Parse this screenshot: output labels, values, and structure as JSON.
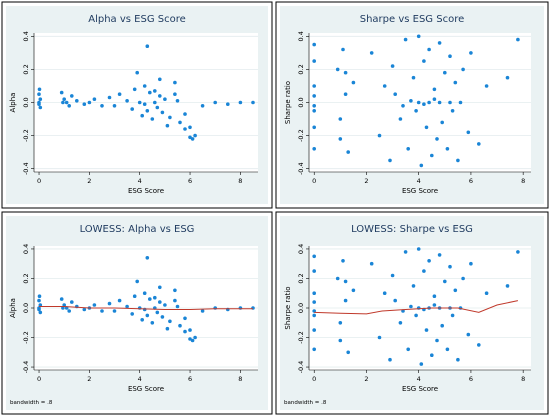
{
  "chart_data": [
    {
      "type": "scatter",
      "title": "Alpha vs ESG Score",
      "xlabel": "ESG Score",
      "ylabel": "Alpha",
      "xlim": [
        -0.2,
        8.7
      ],
      "ylim": [
        -0.42,
        0.42
      ],
      "xticks": [
        "0",
        "2",
        "4",
        "6",
        "8"
      ],
      "yticks": [
        "-0.4",
        "-0.2",
        "0.0",
        "0.2",
        "0.4"
      ],
      "x_tick_values": [
        0,
        2,
        4,
        6,
        8
      ],
      "y_tick_values": [
        -0.4,
        -0.2,
        0.0,
        0.2,
        0.4
      ],
      "point_color": "#1a85d6",
      "grid": true,
      "note": "",
      "series": [
        {
          "x": [
            0.0,
            0.0,
            0.0,
            0.05,
            0.05,
            0.9,
            1.0,
            1.1,
            1.3,
            1.5,
            1.8,
            2.0,
            2.2,
            2.5,
            2.8,
            3.0,
            3.2,
            3.5,
            3.7,
            3.8,
            4.0,
            4.1,
            4.2,
            4.3,
            4.4,
            4.5,
            4.6,
            4.7,
            4.8,
            4.9,
            5.0,
            5.2,
            5.4,
            5.6,
            5.8,
            6.0,
            6.2,
            6.5,
            7.0,
            7.5,
            8.0,
            8.5,
            4.3,
            3.9,
            4.8,
            5.1,
            5.4,
            5.8,
            6.0,
            6.1,
            4.6,
            4.2,
            5.5,
            0.02,
            1.2,
            0.95
          ],
          "y": [
            0.05,
            0.0,
            -0.01,
            0.02,
            -0.03,
            0.06,
            0.02,
            0.0,
            0.04,
            0.01,
            -0.01,
            0.0,
            0.02,
            -0.02,
            0.03,
            -0.02,
            0.05,
            0.01,
            -0.04,
            0.08,
            0.0,
            -0.08,
            0.1,
            -0.05,
            0.06,
            -0.1,
            0.07,
            -0.03,
            0.04,
            -0.06,
            0.02,
            -0.09,
            0.05,
            -0.12,
            -0.07,
            -0.15,
            -0.2,
            -0.02,
            0.0,
            -0.01,
            0.0,
            0.0,
            0.34,
            0.18,
            0.14,
            -0.14,
            0.12,
            -0.16,
            -0.21,
            -0.22,
            0.0,
            -0.01,
            0.01,
            0.08,
            -0.02,
            0.0
          ]
        }
      ]
    },
    {
      "type": "scatter",
      "title": "Sharpe vs ESG Score",
      "xlabel": "ESG Score",
      "ylabel": "Sharpe ratio",
      "xlim": [
        -0.2,
        8.3
      ],
      "ylim": [
        -0.42,
        0.42
      ],
      "xticks": [
        "0",
        "2",
        "4",
        "6",
        "8"
      ],
      "yticks": [
        "-0.4",
        "-0.2",
        "0.0",
        "0.2",
        "0.4"
      ],
      "x_tick_values": [
        0,
        2,
        4,
        6,
        8
      ],
      "y_tick_values": [
        -0.4,
        -0.2,
        0.0,
        0.2,
        0.4
      ],
      "point_color": "#1a85d6",
      "grid": true,
      "note": "",
      "series": [
        {
          "x": [
            0.0,
            0.0,
            0.0,
            0.0,
            0.0,
            0.0,
            0.0,
            0.0,
            0.9,
            1.0,
            1.1,
            1.2,
            1.3,
            1.5,
            1.0,
            1.2,
            2.2,
            2.5,
            2.7,
            2.9,
            3.0,
            3.1,
            3.3,
            3.5,
            3.6,
            3.8,
            3.9,
            4.0,
            4.1,
            4.2,
            4.3,
            4.4,
            4.5,
            4.6,
            4.7,
            4.8,
            4.9,
            5.0,
            5.1,
            5.2,
            5.3,
            5.4,
            5.5,
            5.7,
            5.9,
            6.0,
            6.3,
            6.6,
            7.4,
            7.8,
            4.0,
            4.4,
            4.8,
            3.7,
            5.2,
            4.2,
            4.6,
            3.4,
            5.6
          ],
          "y": [
            0.35,
            0.25,
            0.1,
            -0.05,
            -0.15,
            -0.28,
            0.04,
            -0.02,
            0.2,
            -0.1,
            0.32,
            0.05,
            -0.3,
            0.12,
            -0.22,
            0.18,
            0.3,
            -0.2,
            0.1,
            -0.35,
            0.22,
            0.05,
            -0.1,
            0.38,
            -0.28,
            0.15,
            -0.05,
            0.4,
            -0.38,
            0.25,
            -0.15,
            0.32,
            -0.32,
            0.08,
            -0.22,
            0.36,
            -0.12,
            0.18,
            -0.28,
            0.28,
            -0.05,
            0.12,
            -0.35,
            0.2,
            -0.18,
            0.3,
            -0.25,
            0.1,
            0.15,
            0.38,
            0.0,
            0.0,
            0.0,
            0.01,
            0.0,
            -0.01,
            0.02,
            -0.02,
            0.0
          ]
        }
      ]
    },
    {
      "type": "scatter",
      "title": "LOWESS: Alpha vs ESG",
      "xlabel": "ESG Score",
      "ylabel": "Alpha",
      "xlim": [
        -0.2,
        8.7
      ],
      "ylim": [
        -0.42,
        0.42
      ],
      "xticks": [
        "0",
        "2",
        "4",
        "6",
        "8"
      ],
      "yticks": [
        "-0.4",
        "-0.2",
        "0.0",
        "0.2",
        "0.4"
      ],
      "x_tick_values": [
        0,
        2,
        4,
        6,
        8
      ],
      "y_tick_values": [
        -0.4,
        -0.2,
        0.0,
        0.2,
        0.4
      ],
      "point_color": "#1a85d6",
      "line_color": "#c0392b",
      "grid": true,
      "note": "bandwidth = .8",
      "series": [
        {
          "x": [
            0.0,
            0.0,
            0.0,
            0.05,
            0.05,
            0.9,
            1.0,
            1.1,
            1.3,
            1.5,
            1.8,
            2.0,
            2.2,
            2.5,
            2.8,
            3.0,
            3.2,
            3.5,
            3.7,
            3.8,
            4.0,
            4.1,
            4.2,
            4.3,
            4.4,
            4.5,
            4.6,
            4.7,
            4.8,
            4.9,
            5.0,
            5.2,
            5.4,
            5.6,
            5.8,
            6.0,
            6.2,
            6.5,
            7.0,
            7.5,
            8.0,
            8.5,
            4.3,
            3.9,
            4.8,
            5.1,
            5.4,
            5.8,
            6.0,
            6.1,
            4.6,
            4.2,
            5.5,
            0.02,
            1.2,
            0.95
          ],
          "y": [
            0.05,
            0.0,
            -0.01,
            0.02,
            -0.03,
            0.06,
            0.02,
            0.0,
            0.04,
            0.01,
            -0.01,
            0.0,
            0.02,
            -0.02,
            0.03,
            -0.02,
            0.05,
            0.01,
            -0.04,
            0.08,
            0.0,
            -0.08,
            0.1,
            -0.05,
            0.06,
            -0.1,
            0.07,
            -0.03,
            0.04,
            -0.06,
            0.02,
            -0.09,
            0.05,
            -0.12,
            -0.07,
            -0.15,
            -0.2,
            -0.02,
            0.0,
            -0.01,
            0.0,
            0.0,
            0.34,
            0.18,
            0.14,
            -0.14,
            0.12,
            -0.16,
            -0.21,
            -0.22,
            0.0,
            -0.01,
            0.01,
            0.08,
            -0.02,
            0.0
          ]
        },
        {
          "kind": "line",
          "x": [
            0.0,
            1.0,
            2.0,
            3.0,
            4.0,
            5.0,
            6.0,
            7.0,
            8.5
          ],
          "y": [
            0.01,
            0.01,
            0.0,
            0.0,
            -0.005,
            -0.01,
            -0.01,
            -0.005,
            -0.005
          ]
        }
      ]
    },
    {
      "type": "scatter",
      "title": "LOWESS: Sharpe vs ESG",
      "xlabel": "ESG Score",
      "ylabel": "Sharpe ratio",
      "xlim": [
        -0.2,
        8.3
      ],
      "ylim": [
        -0.42,
        0.42
      ],
      "xticks": [
        "0",
        "2",
        "4",
        "6",
        "8"
      ],
      "yticks": [
        "-0.4",
        "-0.2",
        "0.0",
        "0.2",
        "0.4"
      ],
      "x_tick_values": [
        0,
        2,
        4,
        6,
        8
      ],
      "y_tick_values": [
        -0.4,
        -0.2,
        0.0,
        0.2,
        0.4
      ],
      "point_color": "#1a85d6",
      "line_color": "#c0392b",
      "grid": true,
      "note": "bandwidth = .8",
      "series": [
        {
          "x": [
            0.0,
            0.0,
            0.0,
            0.0,
            0.0,
            0.0,
            0.0,
            0.0,
            0.9,
            1.0,
            1.1,
            1.2,
            1.3,
            1.5,
            1.0,
            1.2,
            2.2,
            2.5,
            2.7,
            2.9,
            3.0,
            3.1,
            3.3,
            3.5,
            3.6,
            3.8,
            3.9,
            4.0,
            4.1,
            4.2,
            4.3,
            4.4,
            4.5,
            4.6,
            4.7,
            4.8,
            4.9,
            5.0,
            5.1,
            5.2,
            5.3,
            5.4,
            5.5,
            5.7,
            5.9,
            6.0,
            6.3,
            6.6,
            7.4,
            7.8,
            4.0,
            4.4,
            4.8,
            3.7,
            5.2,
            4.2,
            4.6,
            3.4,
            5.6
          ],
          "y": [
            0.35,
            0.25,
            0.1,
            -0.05,
            -0.15,
            -0.28,
            0.04,
            -0.02,
            0.2,
            -0.1,
            0.32,
            0.05,
            -0.3,
            0.12,
            -0.22,
            0.18,
            0.3,
            -0.2,
            0.1,
            -0.35,
            0.22,
            0.05,
            -0.1,
            0.38,
            -0.28,
            0.15,
            -0.05,
            0.4,
            -0.38,
            0.25,
            -0.15,
            0.32,
            -0.32,
            0.08,
            -0.22,
            0.36,
            -0.12,
            0.18,
            -0.28,
            0.28,
            -0.05,
            0.12,
            -0.35,
            0.2,
            -0.18,
            0.3,
            -0.25,
            0.1,
            0.15,
            0.38,
            0.0,
            0.0,
            0.0,
            0.01,
            0.0,
            -0.01,
            0.02,
            -0.02,
            0.0
          ]
        },
        {
          "kind": "line",
          "x": [
            0.0,
            1.0,
            2.0,
            2.6,
            3.5,
            4.5,
            5.5,
            6.3,
            7.0,
            7.8
          ],
          "y": [
            -0.03,
            -0.035,
            -0.04,
            -0.02,
            -0.01,
            0.0,
            0.0,
            -0.03,
            0.02,
            0.05
          ]
        }
      ]
    }
  ]
}
